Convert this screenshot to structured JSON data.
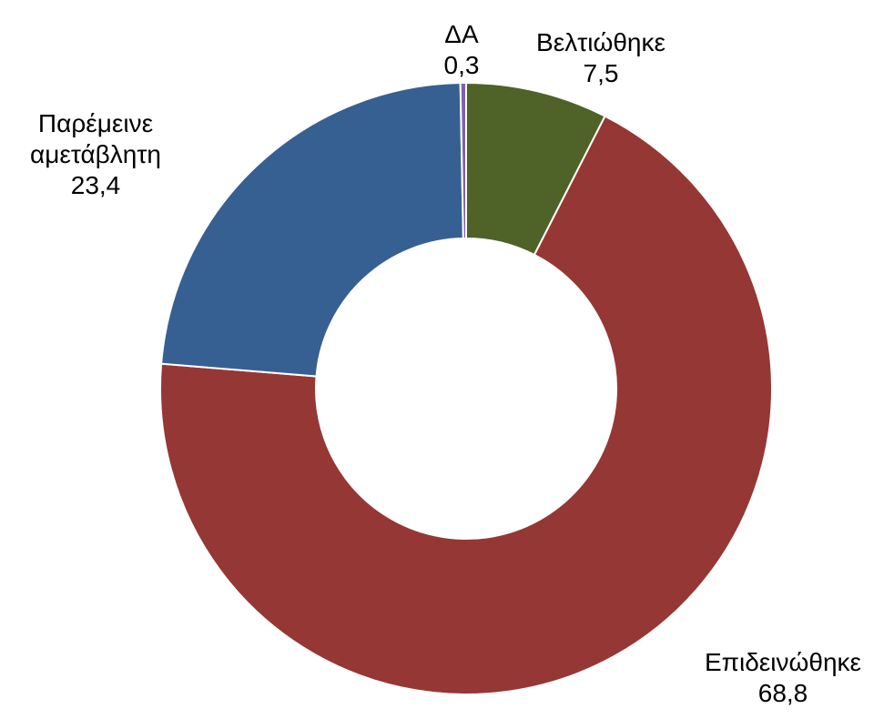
{
  "chart_data": {
    "type": "donut",
    "categories": [
      "Βελτιώθηκε",
      "Επιδεινώθηκε",
      "Παρέμεινε αμετάβλητη",
      "ΔΑ"
    ],
    "values": [
      7.5,
      68.8,
      23.4,
      0.3
    ],
    "value_labels": [
      "7,5",
      "68,8",
      "23,4",
      "0,3"
    ],
    "colors": [
      "#4f6228",
      "#953735",
      "#376092",
      "#7f62a8"
    ]
  }
}
